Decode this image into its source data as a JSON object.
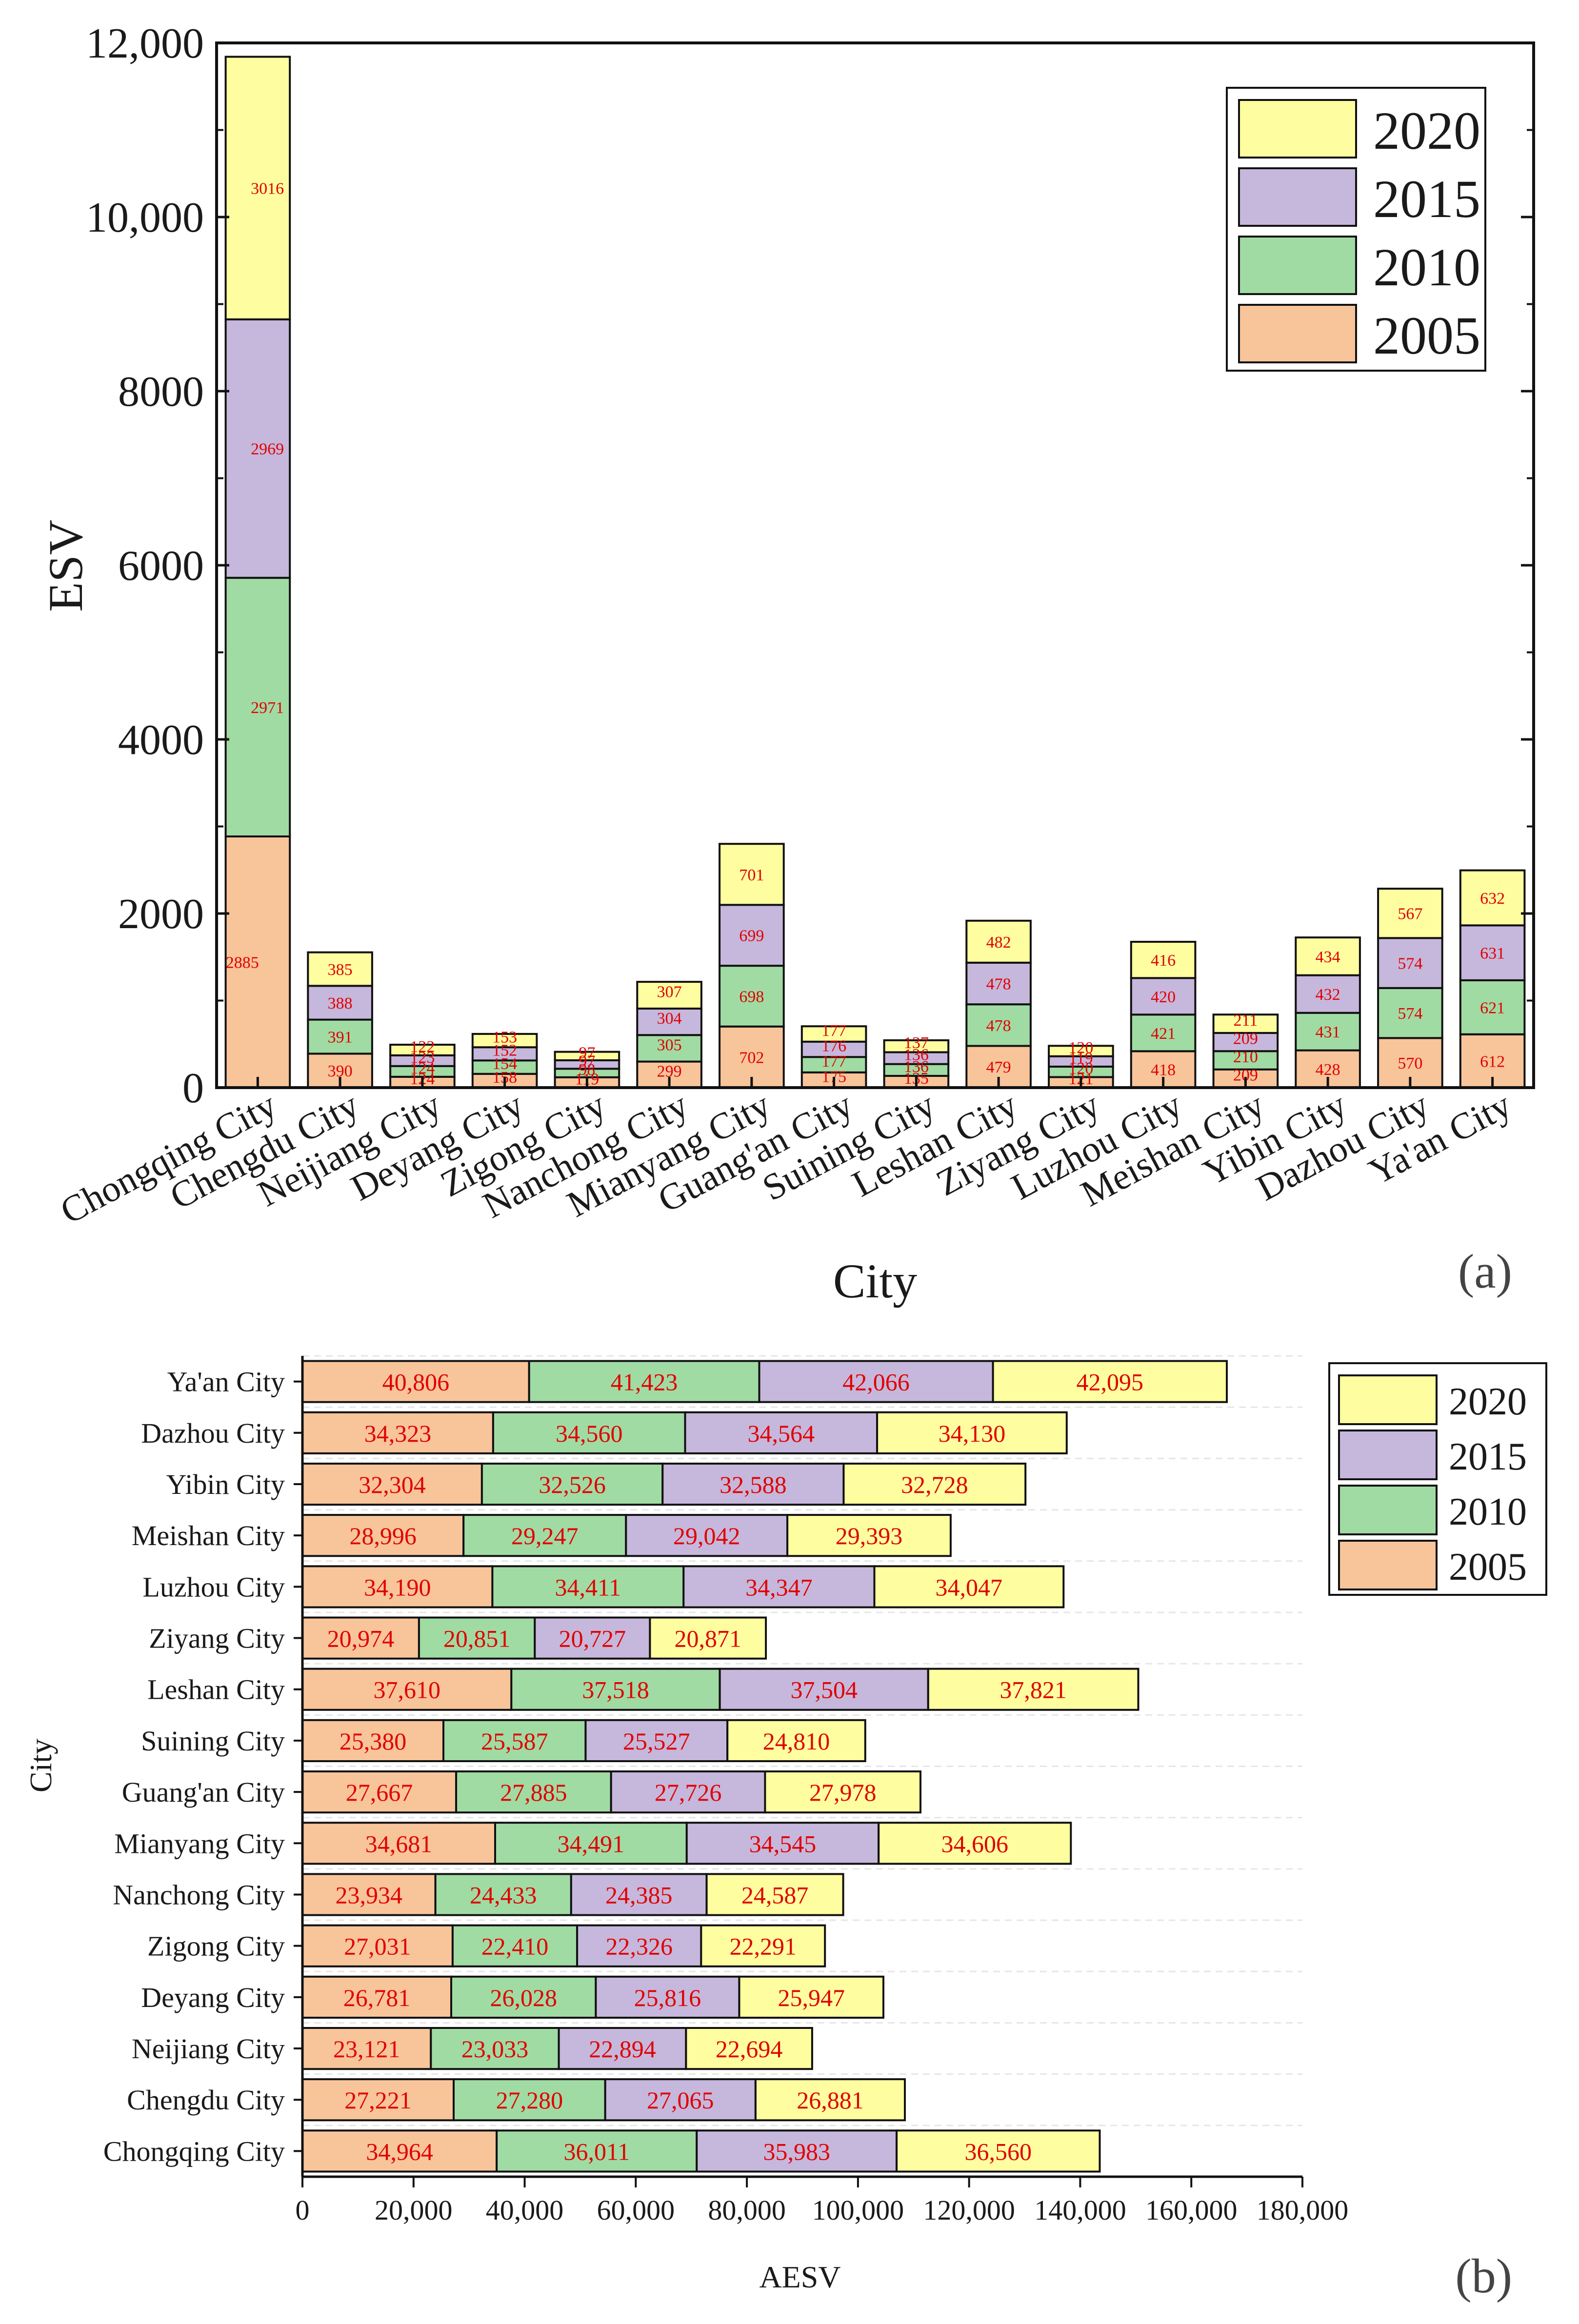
{
  "colors": {
    "2005": "#f8c49a",
    "2010": "#a0dba3",
    "2015": "#c6b7dc",
    "2020": "#fefea0",
    "label": "#e00000"
  },
  "chart_data": [
    {
      "panel_label": "(a)",
      "type": "bar",
      "orientation": "vertical",
      "stacked": true,
      "xlabel": "City",
      "ylabel": "ESV",
      "ylim": [
        0,
        12000
      ],
      "yticks": [
        0,
        2000,
        4000,
        6000,
        8000,
        10000,
        12000
      ],
      "ytick_labels": [
        "0",
        "2000",
        "4000",
        "6000",
        "8000",
        "10,000",
        "12,000"
      ],
      "legend_position": "top-right",
      "legend_order": [
        "2020",
        "2015",
        "2010",
        "2005"
      ],
      "categories": [
        "Chongqing City",
        "Chengdu City",
        "Neijiang City",
        "Deyang City",
        "Zigong City",
        "Nanchong City",
        "Mianyang City",
        "Guang'an City",
        "Suining City",
        "Leshan City",
        "Ziyang City",
        "Luzhou City",
        "Meishan City",
        "Yibin City",
        "Dazhou City",
        "Ya'an City"
      ],
      "series": [
        {
          "name": "2005",
          "values": [
            2885,
            390,
            124,
            158,
            119,
            299,
            702,
            175,
            135,
            479,
            121,
            418,
            209,
            428,
            570,
            612
          ]
        },
        {
          "name": "2010",
          "values": [
            2971,
            391,
            124,
            154,
            98,
            305,
            698,
            177,
            136,
            478,
            120,
            421,
            210,
            431,
            574,
            621
          ]
        },
        {
          "name": "2015",
          "values": [
            2969,
            388,
            123,
            152,
            97,
            304,
            699,
            176,
            136,
            478,
            119,
            420,
            209,
            432,
            574,
            631
          ]
        },
        {
          "name": "2020",
          "values": [
            3016,
            385,
            122,
            153,
            97,
            307,
            701,
            177,
            137,
            482,
            120,
            416,
            211,
            434,
            567,
            632
          ]
        }
      ]
    },
    {
      "panel_label": "(b)",
      "type": "bar",
      "orientation": "horizontal",
      "stacked": true,
      "xlabel": "AESV",
      "ylabel": "City",
      "xlim": [
        0,
        180000
      ],
      "xticks": [
        0,
        20000,
        40000,
        60000,
        80000,
        100000,
        120000,
        140000,
        160000,
        180000
      ],
      "xtick_labels": [
        "0",
        "20,000",
        "40,000",
        "60,000",
        "80,000",
        "100,000",
        "120,000",
        "140,000",
        "160,000",
        "180,000"
      ],
      "legend_position": "top-right",
      "legend_order": [
        "2020",
        "2015",
        "2010",
        "2005"
      ],
      "categories": [
        "Chongqing City",
        "Chengdu City",
        "Neijiang City",
        "Deyang City",
        "Zigong City",
        "Nanchong City",
        "Mianyang City",
        "Guang'an City",
        "Suining City",
        "Leshan City",
        "Ziyang City",
        "Luzhou City",
        "Meishan City",
        "Yibin City",
        "Dazhou City",
        "Ya'an City"
      ],
      "series": [
        {
          "name": "2005",
          "values": [
            34964,
            27221,
            23121,
            26781,
            27031,
            23934,
            34681,
            27667,
            25380,
            37610,
            20974,
            34190,
            28996,
            32304,
            34323,
            40806
          ]
        },
        {
          "name": "2010",
          "values": [
            36011,
            27280,
            23033,
            26028,
            22410,
            24433,
            34491,
            27885,
            25587,
            37518,
            20851,
            34411,
            29247,
            32526,
            34560,
            41423
          ]
        },
        {
          "name": "2015",
          "values": [
            35983,
            27065,
            22894,
            25816,
            22326,
            24385,
            34545,
            27726,
            25527,
            37504,
            20727,
            34347,
            29042,
            32588,
            34564,
            42066
          ]
        },
        {
          "name": "2020",
          "values": [
            36560,
            26881,
            22694,
            25947,
            22291,
            24587,
            34606,
            27978,
            24810,
            37821,
            20871,
            34047,
            29393,
            32728,
            34130,
            42095
          ]
        }
      ]
    }
  ]
}
